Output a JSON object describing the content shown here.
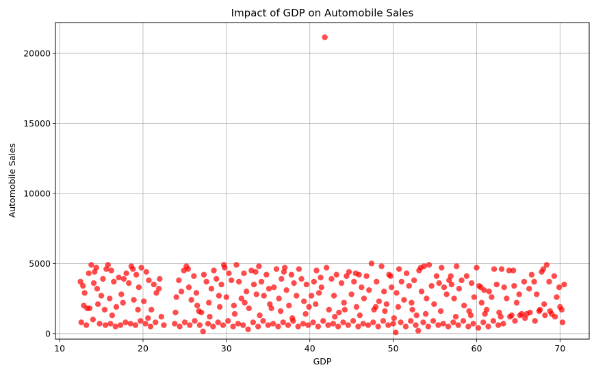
{
  "chart_data": {
    "type": "scatter",
    "title": "Impact of GDP on Automobile Sales",
    "xlabel": "GDP",
    "ylabel": "Automobile Sales",
    "xlim": [
      9.5,
      73.5
    ],
    "ylim": [
      -400,
      22200
    ],
    "xticks": [
      10,
      20,
      30,
      40,
      50,
      60,
      70
    ],
    "yticks": [
      0,
      5000,
      10000,
      15000,
      20000
    ],
    "xtick_labels": [
      "10",
      "20",
      "30",
      "40",
      "50",
      "60",
      "70"
    ],
    "ytick_labels": [
      "0",
      "5000",
      "10000",
      "15000",
      "20000"
    ],
    "grid": true,
    "marker_color": "#ff0000",
    "marker_alpha": 0.7,
    "points": [
      [
        41.8,
        21150
      ],
      [
        12.5,
        3700
      ],
      [
        12.8,
        3400
      ],
      [
        13.0,
        2900
      ],
      [
        13.3,
        1800
      ],
      [
        13.5,
        4300
      ],
      [
        13.6,
        1800
      ],
      [
        13.8,
        4900
      ],
      [
        14.1,
        3600
      ],
      [
        14.4,
        4700
      ],
      [
        14.6,
        2100
      ],
      [
        15.0,
        2700
      ],
      [
        15.2,
        3900
      ],
      [
        15.4,
        1700
      ],
      [
        15.6,
        4600
      ],
      [
        15.8,
        4900
      ],
      [
        16.0,
        2500
      ],
      [
        16.2,
        4500
      ],
      [
        16.5,
        3700
      ],
      [
        16.8,
        1900
      ],
      [
        17.1,
        4000
      ],
      [
        17.4,
        2800
      ],
      [
        17.7,
        3900
      ],
      [
        18.0,
        4300
      ],
      [
        18.3,
        3600
      ],
      [
        18.6,
        4800
      ],
      [
        18.9,
        2400
      ],
      [
        19.2,
        4200
      ],
      [
        19.5,
        3300
      ],
      [
        19.8,
        4700
      ],
      [
        20.1,
        2300
      ],
      [
        20.4,
        4400
      ],
      [
        20.7,
        3800
      ],
      [
        21.0,
        1700
      ],
      [
        21.3,
        3500
      ],
      [
        21.6,
        2900
      ],
      [
        21.9,
        3200
      ],
      [
        22.2,
        1200
      ],
      [
        24.0,
        2600
      ],
      [
        24.3,
        3800
      ],
      [
        24.6,
        3000
      ],
      [
        24.9,
        4500
      ],
      [
        25.2,
        4800
      ],
      [
        25.5,
        3300
      ],
      [
        25.8,
        2400
      ],
      [
        26.1,
        4100
      ],
      [
        26.4,
        2900
      ],
      [
        26.7,
        1600
      ],
      [
        27.0,
        1500
      ],
      [
        27.3,
        4200
      ],
      [
        27.6,
        3700
      ],
      [
        27.9,
        2200
      ],
      [
        28.2,
        3200
      ],
      [
        28.5,
        4500
      ],
      [
        28.8,
        3900
      ],
      [
        29.1,
        2700
      ],
      [
        29.4,
        3500
      ],
      [
        29.7,
        4900
      ],
      [
        30.0,
        2600
      ],
      [
        30.3,
        4300
      ],
      [
        30.6,
        3800
      ],
      [
        30.9,
        2000
      ],
      [
        31.2,
        4900
      ],
      [
        31.5,
        3700
      ],
      [
        31.8,
        2500
      ],
      [
        32.1,
        4300
      ],
      [
        32.4,
        3000
      ],
      [
        32.7,
        1800
      ],
      [
        33.0,
        4500
      ],
      [
        33.3,
        3500
      ],
      [
        33.6,
        2800
      ],
      [
        33.9,
        4800
      ],
      [
        34.2,
        3700
      ],
      [
        34.5,
        2700
      ],
      [
        34.8,
        4200
      ],
      [
        35.1,
        3200
      ],
      [
        35.4,
        1800
      ],
      [
        35.7,
        3300
      ],
      [
        36.0,
        4600
      ],
      [
        36.3,
        2500
      ],
      [
        36.6,
        3900
      ],
      [
        36.9,
        4400
      ],
      [
        37.2,
        3100
      ],
      [
        37.5,
        2000
      ],
      [
        37.8,
        4200
      ],
      [
        38.1,
        3600
      ],
      [
        38.4,
        2700
      ],
      [
        38.7,
        4600
      ],
      [
        39.0,
        3900
      ],
      [
        39.3,
        2300
      ],
      [
        39.6,
        3500
      ],
      [
        39.9,
        1900
      ],
      [
        40.2,
        2700
      ],
      [
        40.5,
        3700
      ],
      [
        40.8,
        4500
      ],
      [
        41.1,
        2900
      ],
      [
        41.4,
        3300
      ],
      [
        42.0,
        4700
      ],
      [
        42.3,
        1700
      ],
      [
        42.6,
        3900
      ],
      [
        42.9,
        2700
      ],
      [
        43.2,
        4200
      ],
      [
        43.5,
        1500
      ],
      [
        43.8,
        3600
      ],
      [
        44.1,
        2200
      ],
      [
        44.4,
        4100
      ],
      [
        44.7,
        4400
      ],
      [
        45.0,
        2800
      ],
      [
        45.3,
        3700
      ],
      [
        45.6,
        1900
      ],
      [
        45.9,
        4200
      ],
      [
        46.2,
        3300
      ],
      [
        46.5,
        2500
      ],
      [
        46.8,
        4100
      ],
      [
        47.1,
        3100
      ],
      [
        47.4,
        5000
      ],
      [
        47.7,
        1700
      ],
      [
        48.0,
        3700
      ],
      [
        48.3,
        2300
      ],
      [
        48.6,
        4800
      ],
      [
        48.9,
        3000
      ],
      [
        49.2,
        2100
      ],
      [
        49.5,
        4200
      ],
      [
        49.8,
        3300
      ],
      [
        50.1,
        1100
      ],
      [
        50.4,
        2900
      ],
      [
        50.7,
        4600
      ],
      [
        51.0,
        3700
      ],
      [
        51.3,
        2400
      ],
      [
        51.6,
        4300
      ],
      [
        51.9,
        3400
      ],
      [
        52.2,
        2200
      ],
      [
        52.5,
        3800
      ],
      [
        52.8,
        1300
      ],
      [
        53.1,
        4500
      ],
      [
        53.4,
        3000
      ],
      [
        53.7,
        4800
      ],
      [
        54.0,
        2500
      ],
      [
        54.3,
        4900
      ],
      [
        54.6,
        3400
      ],
      [
        54.9,
        2100
      ],
      [
        55.2,
        4100
      ],
      [
        55.5,
        3600
      ],
      [
        55.8,
        4700
      ],
      [
        56.1,
        3300
      ],
      [
        56.4,
        2800
      ],
      [
        56.7,
        3800
      ],
      [
        57.0,
        3500
      ],
      [
        57.3,
        2500
      ],
      [
        57.6,
        4800
      ],
      [
        57.9,
        3200
      ],
      [
        58.2,
        3800
      ],
      [
        58.5,
        2000
      ],
      [
        58.8,
        4100
      ],
      [
        59.1,
        1600
      ],
      [
        59.4,
        3600
      ],
      [
        59.7,
        2600
      ],
      [
        60.0,
        4700
      ],
      [
        60.3,
        3400
      ],
      [
        60.6,
        2200
      ],
      [
        60.9,
        3100
      ],
      [
        61.2,
        1700
      ],
      [
        61.5,
        3000
      ],
      [
        61.8,
        2600
      ],
      [
        62.1,
        4600
      ],
      [
        62.4,
        3500
      ],
      [
        62.7,
        1500
      ],
      [
        63.0,
        4600
      ],
      [
        63.3,
        3300
      ],
      [
        63.6,
        2500
      ],
      [
        63.9,
        4500
      ],
      [
        64.2,
        1300
      ],
      [
        64.5,
        3400
      ],
      [
        64.8,
        2200
      ],
      [
        65.1,
        2800
      ],
      [
        65.4,
        1400
      ],
      [
        65.7,
        3700
      ],
      [
        66.0,
        1400
      ],
      [
        66.3,
        3200
      ],
      [
        66.6,
        4200
      ],
      [
        66.9,
        3700
      ],
      [
        67.2,
        2800
      ],
      [
        67.5,
        1600
      ],
      [
        67.8,
        4400
      ],
      [
        68.1,
        2100
      ],
      [
        68.4,
        4900
      ],
      [
        68.7,
        3700
      ],
      [
        69.0,
        1400
      ],
      [
        69.3,
        4100
      ],
      [
        69.6,
        2600
      ],
      [
        69.9,
        3300
      ],
      [
        70.2,
        1700
      ],
      [
        70.5,
        3500
      ],
      [
        12.6,
        800
      ],
      [
        13.2,
        600
      ],
      [
        14.0,
        1000
      ],
      [
        14.8,
        700
      ],
      [
        15.5,
        600
      ],
      [
        16.1,
        700
      ],
      [
        16.7,
        500
      ],
      [
        17.3,
        600
      ],
      [
        17.9,
        800
      ],
      [
        18.5,
        700
      ],
      [
        19.1,
        600
      ],
      [
        19.7,
        900
      ],
      [
        20.3,
        700
      ],
      [
        20.9,
        500
      ],
      [
        21.5,
        800
      ],
      [
        22.5,
        600
      ],
      [
        23.8,
        700
      ],
      [
        24.4,
        500
      ],
      [
        25.0,
        800
      ],
      [
        25.6,
        600
      ],
      [
        26.2,
        900
      ],
      [
        26.8,
        600
      ],
      [
        27.2,
        150
      ],
      [
        27.8,
        700
      ],
      [
        28.4,
        500
      ],
      [
        29.0,
        800
      ],
      [
        29.6,
        600
      ],
      [
        30.2,
        900
      ],
      [
        30.8,
        500
      ],
      [
        31.4,
        700
      ],
      [
        32.0,
        600
      ],
      [
        32.6,
        300
      ],
      [
        33.2,
        800
      ],
      [
        33.8,
        500
      ],
      [
        34.4,
        900
      ],
      [
        35.0,
        600
      ],
      [
        35.6,
        700
      ],
      [
        36.2,
        500
      ],
      [
        36.8,
        800
      ],
      [
        37.4,
        600
      ],
      [
        38.0,
        900
      ],
      [
        38.6,
        500
      ],
      [
        39.2,
        700
      ],
      [
        39.8,
        600
      ],
      [
        40.4,
        800
      ],
      [
        41.0,
        500
      ],
      [
        41.6,
        900
      ],
      [
        42.2,
        600
      ],
      [
        42.8,
        700
      ],
      [
        43.4,
        500
      ],
      [
        44.0,
        800
      ],
      [
        44.6,
        600
      ],
      [
        45.2,
        900
      ],
      [
        45.8,
        500
      ],
      [
        46.4,
        700
      ],
      [
        47.0,
        600
      ],
      [
        47.6,
        800
      ],
      [
        48.2,
        500
      ],
      [
        48.8,
        900
      ],
      [
        49.4,
        600
      ],
      [
        50.0,
        700
      ],
      [
        50.3,
        80
      ],
      [
        50.9,
        800
      ],
      [
        51.5,
        500
      ],
      [
        52.1,
        900
      ],
      [
        52.7,
        600
      ],
      [
        53.0,
        200
      ],
      [
        53.6,
        800
      ],
      [
        54.2,
        500
      ],
      [
        54.8,
        900
      ],
      [
        55.4,
        600
      ],
      [
        56.0,
        700
      ],
      [
        56.6,
        500
      ],
      [
        57.2,
        800
      ],
      [
        57.8,
        600
      ],
      [
        58.4,
        900
      ],
      [
        59.0,
        500
      ],
      [
        59.6,
        700
      ],
      [
        60.2,
        400
      ],
      [
        60.8,
        800
      ],
      [
        61.4,
        500
      ],
      [
        62.0,
        900
      ],
      [
        62.6,
        600
      ],
      [
        63.2,
        700
      ],
      [
        64.0,
        1200
      ],
      [
        64.6,
        900
      ],
      [
        65.2,
        1300
      ],
      [
        65.8,
        1100
      ],
      [
        66.4,
        1500
      ],
      [
        67.0,
        900
      ],
      [
        67.6,
        1700
      ],
      [
        68.2,
        1300
      ],
      [
        68.8,
        1600
      ],
      [
        69.4,
        1200
      ],
      [
        70.0,
        1900
      ],
      [
        70.3,
        800
      ],
      [
        12.9,
        2000
      ],
      [
        14.5,
        3200
      ],
      [
        16.3,
        1300
      ],
      [
        17.6,
        2200
      ],
      [
        19.4,
        1700
      ],
      [
        20.6,
        1100
      ],
      [
        23.9,
        1500
      ],
      [
        26.5,
        2000
      ],
      [
        28.0,
        1200
      ],
      [
        29.2,
        1900
      ],
      [
        31.0,
        1400
      ],
      [
        32.2,
        2200
      ],
      [
        34.0,
        1300
      ],
      [
        35.2,
        2100
      ],
      [
        36.5,
        1600
      ],
      [
        37.9,
        1100
      ],
      [
        39.5,
        1400
      ],
      [
        40.7,
        2100
      ],
      [
        43.0,
        1200
      ],
      [
        44.2,
        1700
      ],
      [
        46.0,
        1300
      ],
      [
        47.9,
        1900
      ],
      [
        49.0,
        1600
      ],
      [
        50.6,
        1900
      ],
      [
        52.3,
        1700
      ],
      [
        53.9,
        1400
      ],
      [
        55.7,
        1600
      ],
      [
        57.5,
        1200
      ],
      [
        59.3,
        1300
      ],
      [
        61.0,
        1400
      ],
      [
        62.9,
        1200
      ],
      [
        14.2,
        4400
      ],
      [
        18.8,
        4600
      ],
      [
        22.0,
        3900
      ],
      [
        25.4,
        4600
      ],
      [
        29.8,
        4700
      ],
      [
        33.5,
        4400
      ],
      [
        37.0,
        4700
      ],
      [
        41.3,
        4000
      ],
      [
        45.5,
        4300
      ],
      [
        49.7,
        4100
      ],
      [
        53.3,
        4700
      ],
      [
        56.9,
        4100
      ],
      [
        60.5,
        3300
      ],
      [
        64.4,
        4500
      ],
      [
        68.0,
        4600
      ]
    ]
  }
}
